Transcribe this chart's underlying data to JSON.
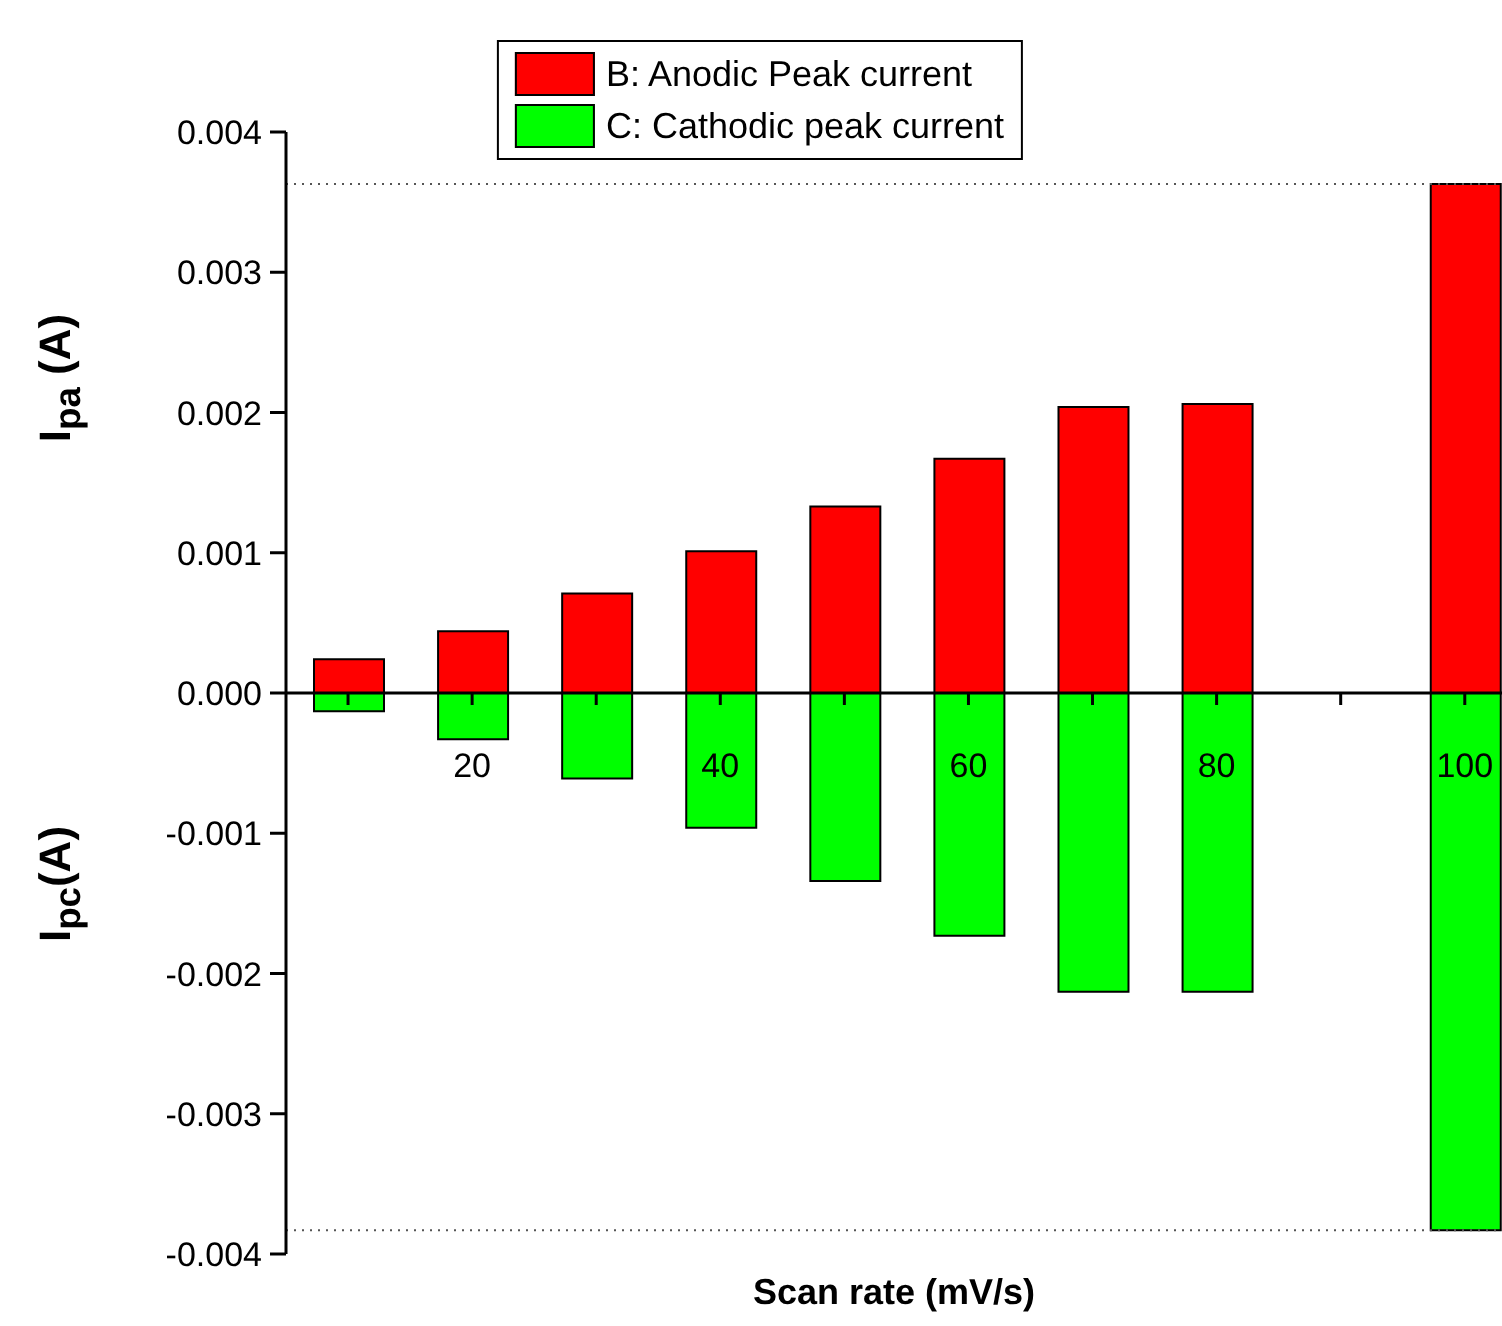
{
  "chart_data": {
    "type": "bar",
    "xlabel": "Scan rate (mV/s)",
    "ylabel": "I$_{pa}$ (A)",
    "annotations": [
      "I$_{pc}$(A)"
    ],
    "x": [
      10,
      20,
      30,
      40,
      50,
      60,
      70,
      80,
      100
    ],
    "stacked": true,
    "series": [
      {
        "name": "B: Anodic Peak current",
        "color": "#ff0000",
        "values": [
          0.00024,
          0.00044,
          0.00071,
          0.00101,
          0.00133,
          0.00167,
          0.00204,
          0.00206,
          0.00363
        ]
      },
      {
        "name": "C: Cathodic peak current",
        "color": "#00ff00",
        "values": [
          -0.00013,
          -0.00033,
          -0.00061,
          -0.00096,
          -0.00134,
          -0.00173,
          -0.00213,
          -0.00213,
          -0.00383
        ]
      }
    ],
    "xlim": [
      5,
      103
    ],
    "xticks": [
      {
        "value": 10,
        "label": null
      },
      20,
      {
        "value": 30,
        "label": null
      },
      40,
      {
        "value": 50,
        "label": null
      },
      60,
      {
        "value": 70,
        "label": null
      },
      80,
      {
        "value": 90,
        "label": null
      },
      100
    ],
    "ylim": [
      -0.004,
      0.004
    ],
    "yticks": [
      {
        "value": -0.004,
        "label": "-0.004"
      },
      {
        "value": -0.003,
        "label": "-0.003"
      },
      {
        "value": -0.002,
        "label": "-0.002"
      },
      {
        "value": -0.001,
        "label": "-0.001"
      },
      {
        "value": 0,
        "label": "0.000"
      },
      {
        "value": 0.001,
        "label": "0.001"
      },
      {
        "value": 0.002,
        "label": "0.002"
      },
      {
        "value": 0.003,
        "label": "0.003"
      },
      {
        "value": 0.004,
        "label": "0.004"
      }
    ],
    "ref_lines": [
      {
        "axis": "y",
        "value": 0.00363,
        "color": "#555555",
        "line_style": "dotted"
      },
      {
        "axis": "y",
        "value": -0.00383,
        "color": "#555555",
        "line_style": "dotted"
      }
    ],
    "legend": "top",
    "grid": false
  }
}
